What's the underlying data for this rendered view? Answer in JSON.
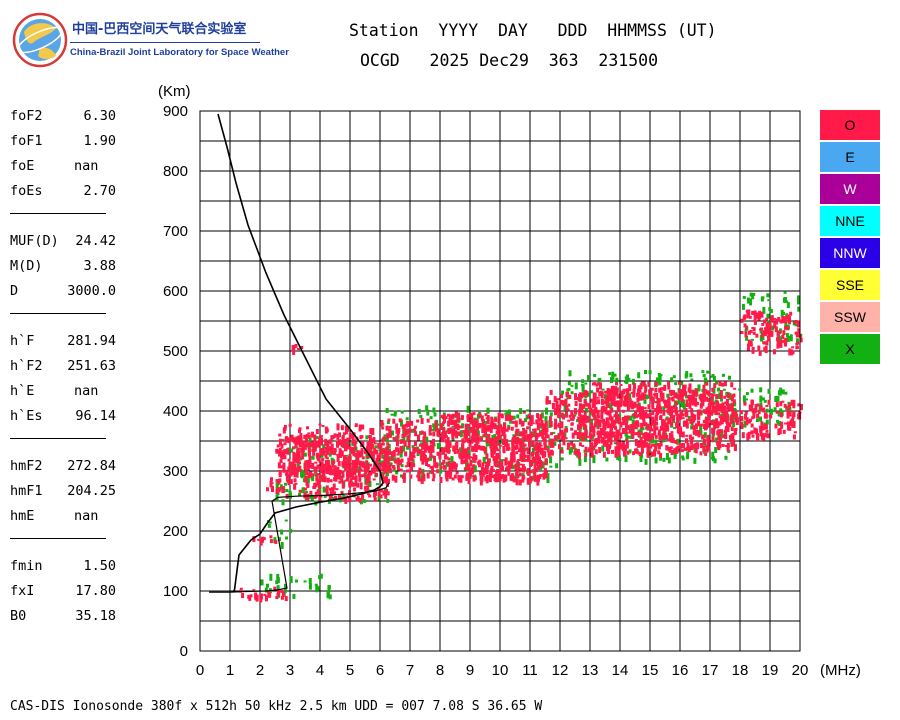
{
  "logo": {
    "name_cn": "中国-巴西空间天气联合实验室",
    "name_en": "China-Brazil Joint Laboratory for Space Weather",
    "icon": "globe-logo-icon"
  },
  "header": {
    "line1": "Station  YYYY  DAY   DDD  HHMMSS (UT)",
    "line2": "OCGD   2025 Dec29  363  231500"
  },
  "parameters": {
    "group1": [
      {
        "label": "foF2",
        "value": "6.30"
      },
      {
        "label": "foF1",
        "value": "1.90"
      },
      {
        "label": "foE",
        "value": "nan"
      },
      {
        "label": "foEs",
        "value": "2.70"
      }
    ],
    "group2": [
      {
        "label": "MUF(D)",
        "value": "24.42"
      },
      {
        "label": "M(D)",
        "value": "3.88"
      },
      {
        "label": "D",
        "value": "3000.0"
      }
    ],
    "group3": [
      {
        "label": "h`F",
        "value": "281.94"
      },
      {
        "label": "h`F2",
        "value": "251.63"
      },
      {
        "label": "h`E",
        "value": "nan"
      },
      {
        "label": "h`Es",
        "value": "96.14"
      }
    ],
    "group4": [
      {
        "label": "hmF2",
        "value": "272.84"
      },
      {
        "label": "hmF1",
        "value": "204.25"
      },
      {
        "label": "hmE",
        "value": "nan"
      }
    ],
    "group5": [
      {
        "label": "fmin",
        "value": "1.50"
      },
      {
        "label": "fxI",
        "value": "17.80"
      },
      {
        "label": "B0",
        "value": "35.18"
      }
    ]
  },
  "legend": [
    {
      "label": "O",
      "color": "#ff1a4a"
    },
    {
      "label": "E",
      "color": "#4aa8f0"
    },
    {
      "label": "W",
      "color": "#aa0099"
    },
    {
      "label": "NNE",
      "color": "#00ffff"
    },
    {
      "label": "NNW",
      "color": "#2a00e8"
    },
    {
      "label": "SSE",
      "color": "#ffff33"
    },
    {
      "label": "SSW",
      "color": "#ffb3a8"
    },
    {
      "label": "X",
      "color": "#12b012"
    }
  ],
  "footer": "CAS-DIS Ionosonde 380f x 512h 50 kHz 2.5 km UDD = 007 7.08 S 36.65 W",
  "chart_data": {
    "type": "scatter",
    "xlabel": "(MHz)",
    "ylabel": "(Km)",
    "xlim": [
      0,
      20
    ],
    "ylim": [
      0,
      900
    ],
    "xticks": [
      "0",
      "1",
      "2",
      "3",
      "4",
      "5",
      "6",
      "7",
      "8",
      "9",
      "10",
      "11",
      "12",
      "13",
      "14",
      "15",
      "16",
      "17",
      "18",
      "19",
      "20"
    ],
    "yticks": [
      "0",
      "100",
      "200",
      "300",
      "400",
      "500",
      "600",
      "700",
      "800",
      "900"
    ],
    "grid": true,
    "legend_placement": "right",
    "bands": [
      {
        "mode": "O",
        "x0": 2.5,
        "x1": 6.3,
        "y0": 255,
        "y1": 320
      },
      {
        "mode": "O",
        "x0": 2.5,
        "x1": 6.0,
        "y0": 290,
        "y1": 360
      },
      {
        "mode": "O",
        "x0": 2.6,
        "x1": 5.8,
        "y0": 330,
        "y1": 380
      },
      {
        "mode": "O",
        "x0": 6.0,
        "x1": 11.5,
        "y0": 285,
        "y1": 390
      },
      {
        "mode": "O",
        "x0": 8.0,
        "x1": 11.5,
        "y0": 290,
        "y1": 400
      },
      {
        "mode": "O",
        "x0": 11.5,
        "x1": 17.0,
        "y0": 330,
        "y1": 440
      },
      {
        "mode": "O",
        "x0": 13.0,
        "x1": 17.8,
        "y0": 340,
        "y1": 450
      },
      {
        "mode": "O",
        "x0": 17.0,
        "x1": 20.0,
        "y0": 360,
        "y1": 420
      },
      {
        "mode": "O",
        "x0": 18.0,
        "x1": 20.0,
        "y0": 500,
        "y1": 570
      },
      {
        "mode": "O",
        "x0": 2.2,
        "x1": 3.0,
        "y0": 270,
        "y1": 290
      },
      {
        "mode": "O",
        "x0": 1.5,
        "x1": 2.6,
        "y0": 185,
        "y1": 195
      },
      {
        "mode": "O",
        "x0": 1.3,
        "x1": 3.0,
        "y0": 90,
        "y1": 108
      },
      {
        "mode": "O",
        "x0": 3.0,
        "x1": 3.5,
        "y0": 500,
        "y1": 515
      },
      {
        "mode": "X",
        "x0": 2.5,
        "x1": 6.3,
        "y0": 250,
        "y1": 360
      },
      {
        "mode": "X",
        "x0": 6.0,
        "x1": 12.0,
        "y0": 290,
        "y1": 410
      },
      {
        "mode": "X",
        "x0": 12.0,
        "x1": 17.8,
        "y0": 320,
        "y1": 470
      },
      {
        "mode": "X",
        "x0": 17.0,
        "x1": 20.0,
        "y0": 380,
        "y1": 440
      },
      {
        "mode": "X",
        "x0": 18.0,
        "x1": 20.0,
        "y0": 520,
        "y1": 600
      },
      {
        "mode": "X",
        "x0": 2.2,
        "x1": 3.0,
        "y0": 180,
        "y1": 220
      },
      {
        "mode": "X",
        "x0": 2.0,
        "x1": 4.3,
        "y0": 90,
        "y1": 130
      }
    ],
    "profile_curve": [
      [
        1.1,
        98
      ],
      [
        1.15,
        102
      ],
      [
        1.3,
        160
      ],
      [
        1.7,
        185
      ],
      [
        2.0,
        195
      ],
      [
        2.2,
        210
      ],
      [
        2.5,
        230
      ],
      [
        3.2,
        240
      ],
      [
        4.0,
        248
      ],
      [
        4.8,
        255
      ],
      [
        5.4,
        262
      ],
      [
        5.8,
        268
      ],
      [
        6.0,
        274
      ],
      [
        6.1,
        280
      ],
      [
        6.0,
        300
      ],
      [
        5.6,
        330
      ],
      [
        5.0,
        370
      ],
      [
        4.2,
        420
      ],
      [
        3.4,
        500
      ],
      [
        2.8,
        560
      ],
      [
        2.2,
        630
      ],
      [
        1.6,
        710
      ],
      [
        1.2,
        780
      ],
      [
        0.9,
        840
      ],
      [
        0.6,
        895
      ]
    ],
    "trace_curve": [
      [
        0.3,
        98
      ],
      [
        1.0,
        98
      ],
      [
        1.4,
        99
      ],
      [
        2.2,
        100
      ],
      [
        2.6,
        102
      ],
      [
        2.9,
        105
      ],
      [
        2.4,
        250
      ],
      [
        2.6,
        256
      ],
      [
        3.2,
        258
      ],
      [
        4.0,
        259
      ],
      [
        5.0,
        262
      ],
      [
        5.8,
        266
      ],
      [
        6.2,
        272
      ],
      [
        6.3,
        280
      ]
    ]
  }
}
